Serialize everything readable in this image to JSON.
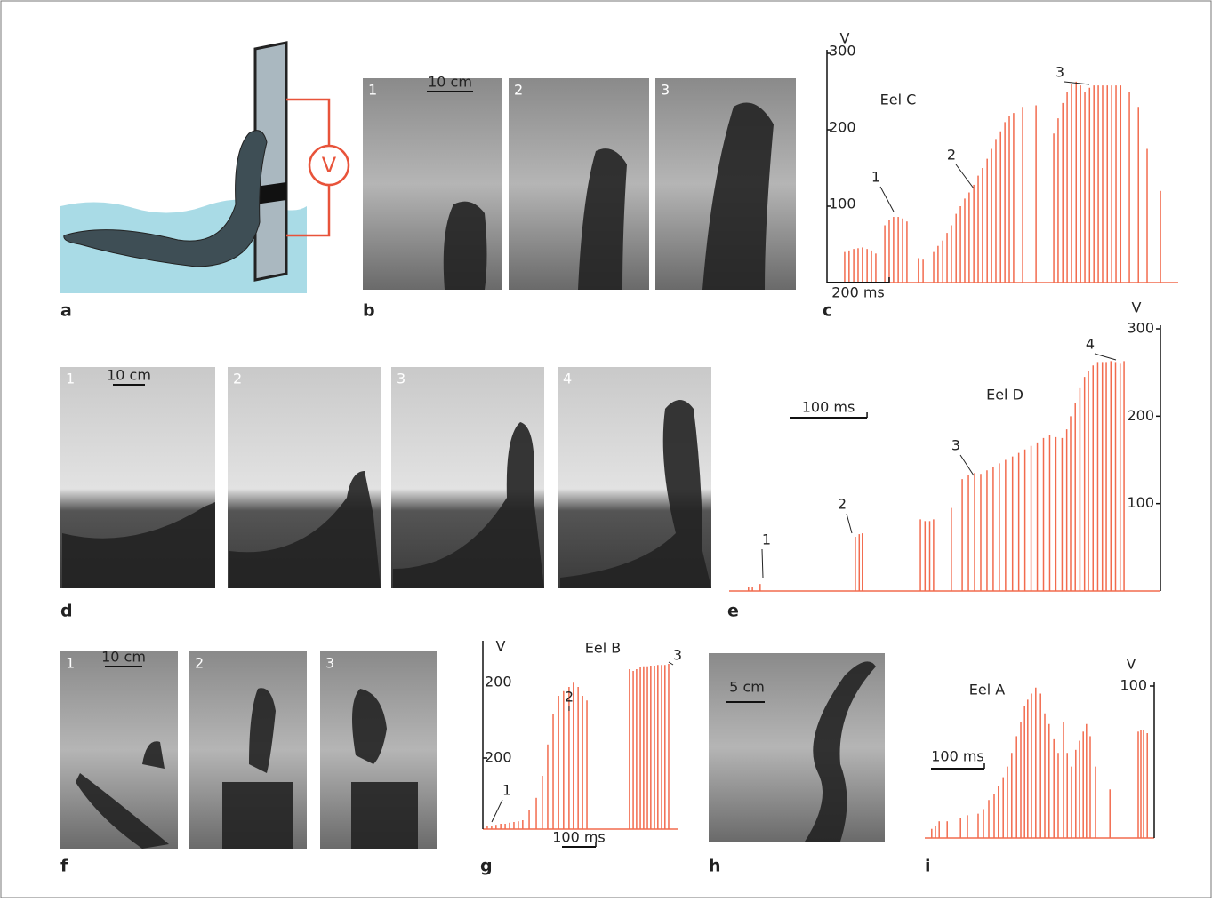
{
  "panel_labels": [
    "a",
    "b",
    "c",
    "d",
    "e",
    "f",
    "g",
    "h",
    "i"
  ],
  "diagram_a": {
    "meter_label": "V"
  },
  "photos_b": {
    "frame_labels": [
      "1",
      "2",
      "3"
    ],
    "scale_bar": "10 cm"
  },
  "photos_d": {
    "frame_labels": [
      "1",
      "2",
      "3",
      "4"
    ],
    "scale_bar": "10 cm"
  },
  "photos_f": {
    "frame_labels": [
      "1",
      "2",
      "3"
    ],
    "scale_bar": "10 cm"
  },
  "photo_h": {
    "scale_bar": "5 cm"
  },
  "chart_data": [
    {
      "type": "spike",
      "title": "Eel C",
      "y_label": "V",
      "color": "#f26b4e",
      "x": [
        0,
        14,
        29,
        43,
        57,
        72,
        86,
        100,
        129,
        143,
        157,
        172,
        186,
        200,
        237,
        252,
        286,
        300,
        315,
        329,
        343,
        358,
        372,
        386,
        400,
        415,
        429,
        443,
        458,
        472,
        486,
        501,
        515,
        529,
        543,
        572,
        615,
        672,
        686,
        701,
        715,
        729,
        744,
        758,
        772,
        787,
        801,
        815,
        829,
        844,
        858,
        872,
        887,
        915,
        944,
        972,
        1015
      ],
      "values": [
        40,
        42,
        44,
        45,
        46,
        44,
        42,
        38,
        75,
        82,
        86,
        86,
        84,
        80,
        32,
        30,
        40,
        48,
        55,
        65,
        75,
        90,
        100,
        110,
        118,
        128,
        140,
        150,
        162,
        175,
        188,
        198,
        210,
        218,
        222,
        230,
        232,
        195,
        215,
        235,
        250,
        260,
        263,
        258,
        250,
        255,
        258,
        258,
        258,
        258,
        258,
        258,
        258,
        250,
        230,
        175,
        120
      ],
      "xlim": [
        -57,
        1072
      ],
      "ylim": [
        0,
        300
      ],
      "yticks": [
        100,
        200,
        300
      ],
      "scale_bar": {
        "value": 200,
        "label": "200 ms"
      },
      "annotations": [
        "1",
        "2",
        "3"
      ]
    },
    {
      "type": "spike",
      "title": "Eel D",
      "y_label": "V",
      "color": "#f26b4e",
      "x": [
        25,
        30,
        40,
        163,
        168,
        172,
        247,
        253,
        259,
        264,
        287,
        301,
        309,
        317,
        325,
        333,
        341,
        349,
        357,
        366,
        374,
        382,
        390,
        398,
        406,
        414,
        422,
        430,
        436,
        441,
        447,
        453,
        459,
        464,
        470,
        476,
        482,
        487,
        493,
        499,
        505,
        510
      ],
      "values": [
        5,
        5,
        8,
        62,
        65,
        66,
        82,
        80,
        80,
        82,
        95,
        128,
        133,
        135,
        134,
        138,
        142,
        146,
        150,
        154,
        158,
        162,
        166,
        170,
        175,
        178,
        176,
        175,
        185,
        200,
        215,
        232,
        245,
        252,
        258,
        262,
        262,
        262,
        263,
        262,
        260,
        263
      ],
      "xlim": [
        0,
        557
      ],
      "ylim": [
        0,
        300
      ],
      "yticks": [
        100,
        200,
        300
      ],
      "scale_bar": {
        "value": 100,
        "label": "100 ms"
      },
      "annotations": [
        "1",
        "2",
        "3",
        "4"
      ]
    },
    {
      "type": "spike",
      "title": "Eel B",
      "y_label": "V",
      "color": "#f26b4e",
      "x": [
        13,
        26,
        39,
        53,
        66,
        79,
        92,
        105,
        118,
        137,
        158,
        176,
        192,
        208,
        224,
        239,
        255,
        268,
        282,
        295,
        308,
        434,
        445,
        455,
        466,
        476,
        487,
        497,
        508,
        518,
        529,
        539,
        550
      ],
      "values": [
        8,
        10,
        12,
        15,
        15,
        18,
        20,
        22,
        25,
        55,
        88,
        150,
        238,
        325,
        375,
        388,
        400,
        412,
        400,
        375,
        362,
        450,
        445,
        450,
        455,
        458,
        458,
        460,
        460,
        462,
        462,
        462,
        465
      ],
      "xlim": [
        0,
        579
      ],
      "ylim": [
        0,
        520
      ],
      "yticks": [
        200
      ],
      "top_tick_label": "200",
      "scale_bar": {
        "value": 100,
        "label": "100 ms"
      },
      "annotations": [
        "1",
        "2",
        "3"
      ]
    },
    {
      "type": "spike",
      "title": "Eel A",
      "y_label": "V",
      "color": "#f26b4e",
      "x": [
        13,
        20,
        27,
        42,
        67,
        80,
        100,
        110,
        120,
        130,
        138,
        147,
        155,
        163,
        172,
        180,
        187,
        193,
        200,
        208,
        217,
        225,
        233,
        242,
        250,
        260,
        267,
        275,
        283,
        290,
        297,
        303,
        310,
        320,
        347,
        400,
        405,
        410,
        417
      ],
      "values": [
        6,
        8,
        11,
        11,
        13,
        15,
        16,
        19,
        25,
        29,
        34,
        40,
        47,
        56,
        67,
        76,
        87,
        91,
        95,
        99,
        95,
        82,
        75,
        65,
        56,
        76,
        56,
        47,
        58,
        64,
        70,
        75,
        67,
        47,
        32,
        70,
        71,
        71,
        69
      ],
      "xlim": [
        0,
        430
      ],
      "ylim": [
        0,
        100
      ],
      "yticks": [
        100
      ],
      "scale_bar": {
        "value": 100,
        "label": "100 ms"
      }
    }
  ]
}
